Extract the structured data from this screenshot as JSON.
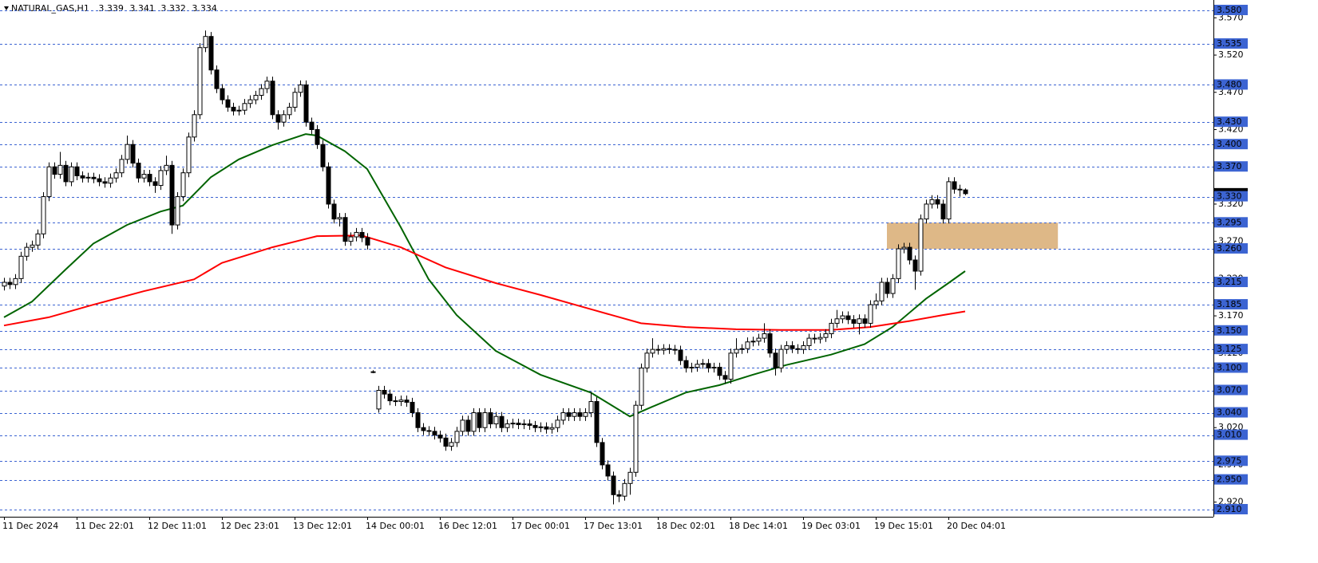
{
  "chart_data": {
    "type": "candlestick",
    "title": "NATURAL_GAS,H1",
    "categories": [
      "11 Dec 2024",
      null,
      null,
      null,
      null,
      null,
      null,
      null,
      null,
      null,
      null,
      null,
      null,
      "11 Dec 22:01",
      null,
      null,
      null,
      null,
      null,
      null,
      null,
      null,
      null,
      null,
      null,
      null,
      "12 Dec 11:01",
      null,
      null,
      null,
      null,
      null,
      null,
      null,
      null,
      null,
      null,
      null,
      null,
      "12 Dec 23:01",
      null,
      null,
      null,
      null,
      null,
      null,
      null,
      null,
      null,
      null,
      null,
      null,
      "13 Dec 12:01",
      null,
      null,
      null,
      null,
      null,
      null,
      null,
      null,
      null,
      null,
      null,
      null,
      "14 Dec 00:01",
      null,
      null,
      null,
      null,
      null,
      null,
      null,
      null,
      null,
      null,
      null,
      null,
      "16 Dec 12:01",
      null,
      null,
      null,
      null,
      null,
      null,
      null,
      null,
      null,
      null,
      null,
      null,
      "17 Dec 00:01",
      null,
      null,
      null,
      null,
      null,
      null,
      null,
      null,
      null,
      null,
      null,
      null,
      "17 Dec 13:01",
      null,
      null,
      null,
      null,
      null,
      null,
      null,
      null,
      null,
      null,
      null,
      null,
      "18 Dec 02:01",
      null,
      null,
      null,
      null,
      null,
      null,
      null,
      null,
      null,
      null,
      null,
      null,
      "18 Dec 14:01",
      null,
      null,
      null,
      null,
      null,
      null,
      null,
      null,
      null,
      null,
      null,
      null,
      "19 Dec 03:01",
      null,
      null,
      null,
      null,
      null,
      null,
      null,
      null,
      null,
      null,
      null,
      null,
      "19 Dec 15:01",
      null,
      null,
      null,
      null,
      null,
      null,
      null,
      null,
      null,
      null,
      null,
      null,
      "20 Dec 04:01",
      null,
      null,
      null
    ],
    "ohlc": [
      [
        3.21,
        3.221,
        3.204,
        3.215
      ],
      [
        3.215,
        3.221,
        3.206,
        3.212
      ],
      [
        3.212,
        3.226,
        3.206,
        3.22
      ],
      [
        3.22,
        3.256,
        3.214,
        3.25
      ],
      [
        3.25,
        3.268,
        3.244,
        3.262
      ],
      [
        3.262,
        3.271,
        3.256,
        3.265
      ],
      [
        3.265,
        3.286,
        3.259,
        3.28
      ],
      [
        3.28,
        3.336,
        3.274,
        3.33
      ],
      [
        3.33,
        3.376,
        3.324,
        3.37
      ],
      [
        3.37,
        3.376,
        3.354,
        3.36
      ],
      [
        3.36,
        3.39,
        3.354,
        3.372
      ],
      [
        3.372,
        3.378,
        3.344,
        3.35
      ],
      [
        3.35,
        3.376,
        3.344,
        3.37
      ],
      [
        3.37,
        3.376,
        3.352,
        3.358
      ],
      [
        3.358,
        3.364,
        3.349,
        3.355
      ],
      [
        3.355,
        3.362,
        3.349,
        3.356
      ],
      [
        3.356,
        3.362,
        3.348,
        3.354
      ],
      [
        3.354,
        3.36,
        3.344,
        3.35
      ],
      [
        3.35,
        3.356,
        3.342,
        3.348
      ],
      [
        3.348,
        3.361,
        3.342,
        3.355
      ],
      [
        3.355,
        3.368,
        3.349,
        3.362
      ],
      [
        3.362,
        3.386,
        3.356,
        3.38
      ],
      [
        3.38,
        3.412,
        3.374,
        3.4
      ],
      [
        3.4,
        3.406,
        3.369,
        3.375
      ],
      [
        3.375,
        3.381,
        3.349,
        3.355
      ],
      [
        3.355,
        3.366,
        3.349,
        3.36
      ],
      [
        3.36,
        3.366,
        3.344,
        3.35
      ],
      [
        3.35,
        3.356,
        3.335,
        3.345
      ],
      [
        3.345,
        3.371,
        3.339,
        3.365
      ],
      [
        3.365,
        3.385,
        3.359,
        3.372
      ],
      [
        3.372,
        3.378,
        3.28,
        3.292
      ],
      [
        3.292,
        3.336,
        3.286,
        3.33
      ],
      [
        3.33,
        3.368,
        3.324,
        3.362
      ],
      [
        3.362,
        3.416,
        3.356,
        3.41
      ],
      [
        3.41,
        3.446,
        3.404,
        3.44
      ],
      [
        3.44,
        3.536,
        3.434,
        3.53
      ],
      [
        3.53,
        3.553,
        3.524,
        3.545
      ],
      [
        3.545,
        3.551,
        3.494,
        3.5
      ],
      [
        3.5,
        3.506,
        3.469,
        3.475
      ],
      [
        3.475,
        3.481,
        3.454,
        3.46
      ],
      [
        3.46,
        3.466,
        3.444,
        3.45
      ],
      [
        3.45,
        3.456,
        3.439,
        3.445
      ],
      [
        3.445,
        3.452,
        3.439,
        3.446
      ],
      [
        3.446,
        3.461,
        3.44,
        3.455
      ],
      [
        3.455,
        3.466,
        3.449,
        3.46
      ],
      [
        3.46,
        3.472,
        3.454,
        3.466
      ],
      [
        3.466,
        3.481,
        3.46,
        3.475
      ],
      [
        3.475,
        3.491,
        3.469,
        3.485
      ],
      [
        3.485,
        3.491,
        3.434,
        3.44
      ],
      [
        3.44,
        3.446,
        3.42,
        3.43
      ],
      [
        3.43,
        3.446,
        3.424,
        3.44
      ],
      [
        3.44,
        3.456,
        3.434,
        3.45
      ],
      [
        3.45,
        3.476,
        3.444,
        3.47
      ],
      [
        3.47,
        3.486,
        3.464,
        3.48
      ],
      [
        3.48,
        3.486,
        3.424,
        3.43
      ],
      [
        3.43,
        3.436,
        3.414,
        3.42
      ],
      [
        3.42,
        3.426,
        3.394,
        3.4
      ],
      [
        3.4,
        3.406,
        3.364,
        3.37
      ],
      [
        3.37,
        3.376,
        3.314,
        3.32
      ],
      [
        3.32,
        3.326,
        3.294,
        3.3
      ],
      [
        3.3,
        3.308,
        3.29,
        3.302
      ],
      [
        3.302,
        3.308,
        3.264,
        3.27
      ],
      [
        3.27,
        3.282,
        3.264,
        3.276
      ],
      [
        3.276,
        3.288,
        3.27,
        3.282
      ],
      [
        3.282,
        3.288,
        3.269,
        3.275
      ],
      [
        3.275,
        3.281,
        3.259,
        3.265
      ],
      [
        3.095,
        3.097,
        3.093,
        3.095
      ],
      [
        3.045,
        3.076,
        3.04,
        3.07
      ],
      [
        3.07,
        3.076,
        3.059,
        3.065
      ],
      [
        3.065,
        3.071,
        3.05,
        3.056
      ],
      [
        3.056,
        3.062,
        3.049,
        3.055
      ],
      [
        3.055,
        3.063,
        3.049,
        3.057
      ],
      [
        3.057,
        3.063,
        3.048,
        3.054
      ],
      [
        3.054,
        3.06,
        3.034,
        3.04
      ],
      [
        3.04,
        3.046,
        3.014,
        3.02
      ],
      [
        3.02,
        3.026,
        3.01,
        3.016
      ],
      [
        3.016,
        3.022,
        3.009,
        3.015
      ],
      [
        3.015,
        3.021,
        3.004,
        3.01
      ],
      [
        3.01,
        3.016,
        3.0,
        3.006
      ],
      [
        3.006,
        3.012,
        2.989,
        2.995
      ],
      [
        2.995,
        3.006,
        2.989,
        3.0
      ],
      [
        3.0,
        3.021,
        2.994,
        3.015
      ],
      [
        3.015,
        3.036,
        3.009,
        3.03
      ],
      [
        3.03,
        3.036,
        3.009,
        3.015
      ],
      [
        3.015,
        3.046,
        3.009,
        3.04
      ],
      [
        3.04,
        3.046,
        3.014,
        3.02
      ],
      [
        3.02,
        3.046,
        3.014,
        3.04
      ],
      [
        3.04,
        3.046,
        3.019,
        3.025
      ],
      [
        3.025,
        3.041,
        3.019,
        3.035
      ],
      [
        3.035,
        3.041,
        3.014,
        3.02
      ],
      [
        3.02,
        3.031,
        3.014,
        3.025
      ],
      [
        3.025,
        3.032,
        3.019,
        3.026
      ],
      [
        3.026,
        3.032,
        3.018,
        3.024
      ],
      [
        3.024,
        3.031,
        3.018,
        3.025
      ],
      [
        3.025,
        3.031,
        3.017,
        3.023
      ],
      [
        3.023,
        3.029,
        3.014,
        3.02
      ],
      [
        3.02,
        3.027,
        3.014,
        3.021
      ],
      [
        3.021,
        3.027,
        3.012,
        3.018
      ],
      [
        3.018,
        3.026,
        3.012,
        3.02
      ],
      [
        3.02,
        3.036,
        3.014,
        3.03
      ],
      [
        3.03,
        3.046,
        3.024,
        3.04
      ],
      [
        3.04,
        3.046,
        3.029,
        3.035
      ],
      [
        3.035,
        3.046,
        3.029,
        3.04
      ],
      [
        3.04,
        3.046,
        3.029,
        3.035
      ],
      [
        3.035,
        3.046,
        3.029,
        3.04
      ],
      [
        3.04,
        3.068,
        3.034,
        3.055
      ],
      [
        3.055,
        3.061,
        2.994,
        3.0
      ],
      [
        3.0,
        3.006,
        2.964,
        2.97
      ],
      [
        2.97,
        2.976,
        2.949,
        2.955
      ],
      [
        2.955,
        2.961,
        2.917,
        2.93
      ],
      [
        2.93,
        2.936,
        2.92,
        2.928
      ],
      [
        2.928,
        2.951,
        2.922,
        2.945
      ],
      [
        2.945,
        2.966,
        2.93,
        2.96
      ],
      [
        2.96,
        3.056,
        2.954,
        3.05
      ],
      [
        3.05,
        3.106,
        3.044,
        3.1
      ],
      [
        3.1,
        3.126,
        3.094,
        3.12
      ],
      [
        3.12,
        3.14,
        3.114,
        3.125
      ],
      [
        3.125,
        3.131,
        3.118,
        3.124
      ],
      [
        3.124,
        3.132,
        3.118,
        3.126
      ],
      [
        3.126,
        3.132,
        3.119,
        3.125
      ],
      [
        3.125,
        3.131,
        3.118,
        3.124
      ],
      [
        3.124,
        3.13,
        3.104,
        3.11
      ],
      [
        3.11,
        3.116,
        3.094,
        3.1
      ],
      [
        3.1,
        3.107,
        3.094,
        3.101
      ],
      [
        3.101,
        3.111,
        3.095,
        3.105
      ],
      [
        3.105,
        3.112,
        3.099,
        3.106
      ],
      [
        3.106,
        3.112,
        3.094,
        3.1
      ],
      [
        3.1,
        3.107,
        3.094,
        3.101
      ],
      [
        3.101,
        3.107,
        3.084,
        3.09
      ],
      [
        3.09,
        3.096,
        3.079,
        3.085
      ],
      [
        3.085,
        3.126,
        3.079,
        3.12
      ],
      [
        3.12,
        3.14,
        3.114,
        3.125
      ],
      [
        3.125,
        3.132,
        3.119,
        3.126
      ],
      [
        3.126,
        3.141,
        3.12,
        3.135
      ],
      [
        3.135,
        3.142,
        3.129,
        3.136
      ],
      [
        3.136,
        3.146,
        3.13,
        3.14
      ],
      [
        3.14,
        3.16,
        3.134,
        3.146
      ],
      [
        3.146,
        3.152,
        3.114,
        3.12
      ],
      [
        3.12,
        3.126,
        3.09,
        3.1
      ],
      [
        3.1,
        3.131,
        3.094,
        3.125
      ],
      [
        3.125,
        3.136,
        3.119,
        3.13
      ],
      [
        3.13,
        3.136,
        3.12,
        3.126
      ],
      [
        3.126,
        3.132,
        3.119,
        3.125
      ],
      [
        3.125,
        3.136,
        3.119,
        3.13
      ],
      [
        3.13,
        3.146,
        3.124,
        3.14
      ],
      [
        3.14,
        3.146,
        3.133,
        3.139
      ],
      [
        3.139,
        3.147,
        3.133,
        3.141
      ],
      [
        3.141,
        3.152,
        3.135,
        3.146
      ],
      [
        3.146,
        3.166,
        3.14,
        3.16
      ],
      [
        3.16,
        3.178,
        3.154,
        3.166
      ],
      [
        3.166,
        3.176,
        3.16,
        3.17
      ],
      [
        3.17,
        3.176,
        3.159,
        3.165
      ],
      [
        3.165,
        3.171,
        3.154,
        3.16
      ],
      [
        3.16,
        3.172,
        3.145,
        3.166
      ],
      [
        3.166,
        3.172,
        3.154,
        3.16
      ],
      [
        3.16,
        3.191,
        3.154,
        3.185
      ],
      [
        3.185,
        3.2,
        3.179,
        3.19
      ],
      [
        3.19,
        3.221,
        3.184,
        3.215
      ],
      [
        3.215,
        3.221,
        3.194,
        3.2
      ],
      [
        3.2,
        3.226,
        3.194,
        3.22
      ],
      [
        3.22,
        3.266,
        3.214,
        3.26
      ],
      [
        3.26,
        3.268,
        3.254,
        3.262
      ],
      [
        3.262,
        3.268,
        3.239,
        3.245
      ],
      [
        3.245,
        3.251,
        3.205,
        3.23
      ],
      [
        3.23,
        3.306,
        3.224,
        3.3
      ],
      [
        3.3,
        3.326,
        3.294,
        3.32
      ],
      [
        3.32,
        3.332,
        3.314,
        3.326
      ],
      [
        3.326,
        3.332,
        3.314,
        3.32
      ],
      [
        3.32,
        3.326,
        3.294,
        3.3
      ],
      [
        3.3,
        3.356,
        3.294,
        3.35
      ],
      [
        3.35,
        3.356,
        3.334,
        3.34
      ],
      [
        3.34,
        3.346,
        3.33,
        3.339
      ],
      [
        3.339,
        3.341,
        3.332,
        3.334
      ]
    ],
    "lines": [
      {
        "color": "#006400",
        "x": [
          0,
          5,
          11,
          16,
          22,
          28,
          32,
          37,
          42,
          48,
          54,
          56,
          61,
          65,
          71,
          76,
          81,
          88,
          96,
          105,
          112,
          116,
          122,
          128,
          134,
          140,
          148,
          154,
          159,
          165,
          169,
          172
        ],
        "values": [
          3.168,
          3.189,
          3.232,
          3.267,
          3.292,
          3.31,
          3.318,
          3.356,
          3.38,
          3.399,
          3.414,
          3.412,
          3.391,
          3.367,
          3.289,
          3.219,
          3.171,
          3.123,
          3.091,
          3.067,
          3.035,
          3.048,
          3.067,
          3.077,
          3.091,
          3.104,
          3.118,
          3.132,
          3.155,
          3.193,
          3.214,
          3.23
        ]
      },
      {
        "color": "#ff0000",
        "x": [
          0,
          8,
          16,
          25,
          34,
          39,
          48,
          56,
          64,
          71,
          79,
          88,
          96,
          105,
          114,
          122,
          131,
          139,
          148,
          155,
          162,
          168,
          172
        ],
        "values": [
          3.157,
          3.168,
          3.185,
          3.203,
          3.219,
          3.241,
          3.262,
          3.277,
          3.278,
          3.262,
          3.235,
          3.214,
          3.198,
          3.179,
          3.16,
          3.155,
          3.152,
          3.151,
          3.151,
          3.155,
          3.163,
          3.171,
          3.176
        ]
      }
    ],
    "zone": {
      "x": [
        158,
        188.6
      ],
      "y": [
        3.26,
        3.295
      ],
      "color": "#deb887"
    },
    "ylim": [
      2.91,
      3.58
    ],
    "yticks": [
      {
        "value": 3.57,
        "label": "3.570"
      },
      {
        "value": 3.52,
        "label": "3.520"
      },
      {
        "value": 3.47,
        "label": "3.470"
      },
      {
        "value": 3.42,
        "label": "3.420"
      },
      {
        "value": 3.37,
        "label": "3.370"
      },
      {
        "value": 3.32,
        "label": "3.320"
      },
      {
        "value": 3.27,
        "label": "3.270"
      },
      {
        "value": 3.22,
        "label": "3.220"
      },
      {
        "value": 3.17,
        "label": "3.170"
      },
      {
        "value": 3.12,
        "label": "3.120"
      },
      {
        "value": 3.07,
        "label": "3.070"
      },
      {
        "value": 3.02,
        "label": "3.020"
      },
      {
        "value": 2.97,
        "label": "2.970"
      },
      {
        "value": 2.92,
        "label": "2.920"
      }
    ],
    "levels": [
      {
        "value": 3.58,
        "label": "3.580"
      },
      {
        "value": 3.535,
        "label": "3.535"
      },
      {
        "value": 3.48,
        "label": "3.480"
      },
      {
        "value": 3.43,
        "label": "3.430"
      },
      {
        "value": 3.4,
        "label": "3.400"
      },
      {
        "value": 3.37,
        "label": "3.370"
      },
      {
        "value": 3.33,
        "label": "3.330"
      },
      {
        "value": 3.295,
        "label": "3.295"
      },
      {
        "value": 3.26,
        "label": "3.260"
      },
      {
        "value": 3.215,
        "label": "3.215"
      },
      {
        "value": 3.185,
        "label": "3.185"
      },
      {
        "value": 3.15,
        "label": "3.150"
      },
      {
        "value": 3.125,
        "label": "3.125"
      },
      {
        "value": 3.1,
        "label": "3.100"
      },
      {
        "value": 3.07,
        "label": "3.070"
      },
      {
        "value": 3.04,
        "label": "3.040"
      },
      {
        "value": 3.01,
        "label": "3.010"
      },
      {
        "value": 2.975,
        "label": "2.975"
      },
      {
        "value": 2.95,
        "label": "2.950"
      },
      {
        "value": 2.91,
        "label": "2.910"
      }
    ],
    "level_color": "#3c64d2"
  }
}
